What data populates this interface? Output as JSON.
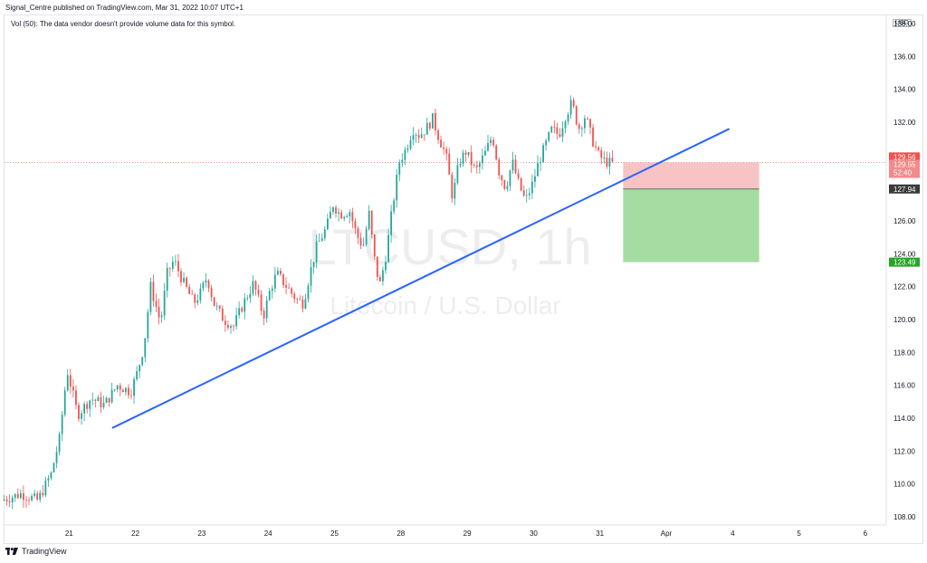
{
  "header": {
    "published": "Signal_Centre published on TradingView.com, Mar 31, 2022 10:07 UTC+1"
  },
  "volume_note": "Vol (50): The data vendor doesn't provide volume data for this symbol.",
  "currency_badge": "USD",
  "footer": {
    "brand": "TradingView"
  },
  "colors": {
    "up": "#26a69a",
    "down": "#ef5350",
    "trendline": "#2962ff",
    "stop_zone": "#f8c3c5",
    "target_zone": "#a5dca2",
    "price_label": "#ef5350",
    "entry_label": "#3a3a3a",
    "target_label": "#26a626"
  },
  "chart_data": {
    "type": "candlestick",
    "title": "LTCUSD, 1h",
    "watermark_symbol": "LTCUSD, 1h",
    "watermark_name": "Litecoin / U.S. Dollar",
    "timeframe": "1h",
    "ylim": [
      107.5,
      138.5
    ],
    "y_ticks": [
      108.0,
      110.0,
      112.0,
      114.0,
      116.0,
      118.0,
      120.0,
      122.0,
      124.0,
      126.0,
      128.0,
      130.0,
      132.0,
      134.0,
      136.0,
      138.0
    ],
    "x_ticks": [
      {
        "label": "21",
        "day": 1
      },
      {
        "label": "22",
        "day": 2
      },
      {
        "label": "23",
        "day": 3
      },
      {
        "label": "24",
        "day": 4
      },
      {
        "label": "25",
        "day": 5
      },
      {
        "label": "28",
        "day": 6
      },
      {
        "label": "29",
        "day": 7
      },
      {
        "label": "30",
        "day": 8
      },
      {
        "label": "31",
        "day": 9
      },
      {
        "label": "Apr",
        "day": 10
      },
      {
        "label": "4",
        "day": 11
      },
      {
        "label": "5",
        "day": 12
      },
      {
        "label": "6",
        "day": 13
      }
    ],
    "price_path": [
      [
        0.0,
        109.0
      ],
      [
        0.3,
        109.4
      ],
      [
        0.55,
        109.0
      ],
      [
        0.75,
        110.6
      ],
      [
        0.88,
        112.8
      ],
      [
        0.95,
        115.5
      ],
      [
        1.0,
        116.8
      ],
      [
        1.15,
        114.2
      ],
      [
        1.35,
        115.2
      ],
      [
        1.55,
        114.8
      ],
      [
        1.75,
        116.0
      ],
      [
        1.95,
        115.6
      ],
      [
        2.05,
        116.8
      ],
      [
        2.15,
        118.4
      ],
      [
        2.25,
        122.0
      ],
      [
        2.4,
        119.8
      ],
      [
        2.5,
        122.8
      ],
      [
        2.6,
        123.6
      ],
      [
        2.75,
        122.2
      ],
      [
        2.9,
        121.0
      ],
      [
        3.0,
        121.6
      ],
      [
        3.1,
        122.6
      ],
      [
        3.2,
        121.0
      ],
      [
        3.35,
        120.0
      ],
      [
        3.5,
        119.6
      ],
      [
        3.65,
        121.0
      ],
      [
        3.8,
        122.2
      ],
      [
        3.95,
        120.2
      ],
      [
        4.05,
        121.8
      ],
      [
        4.15,
        122.8
      ],
      [
        4.3,
        122.0
      ],
      [
        4.45,
        121.2
      ],
      [
        4.55,
        121.0
      ],
      [
        4.65,
        122.8
      ],
      [
        4.75,
        124.4
      ],
      [
        4.9,
        125.6
      ],
      [
        5.0,
        127.0
      ],
      [
        5.1,
        126.4
      ],
      [
        5.25,
        126.6
      ],
      [
        5.35,
        125.2
      ],
      [
        5.45,
        124.4
      ],
      [
        5.55,
        126.6
      ],
      [
        5.6,
        124.2
      ],
      [
        5.7,
        122.0
      ],
      [
        5.8,
        124.0
      ],
      [
        5.9,
        127.0
      ],
      [
        6.0,
        129.6
      ],
      [
        6.1,
        130.4
      ],
      [
        6.2,
        131.6
      ],
      [
        6.3,
        131.2
      ],
      [
        6.4,
        131.6
      ],
      [
        6.5,
        132.2
      ],
      [
        6.6,
        131.0
      ],
      [
        6.7,
        130.0
      ],
      [
        6.8,
        127.4
      ],
      [
        6.9,
        129.6
      ],
      [
        7.0,
        130.2
      ],
      [
        7.15,
        129.0
      ],
      [
        7.3,
        130.2
      ],
      [
        7.4,
        131.2
      ],
      [
        7.5,
        129.0
      ],
      [
        7.6,
        128.0
      ],
      [
        7.7,
        129.6
      ],
      [
        7.8,
        128.2
      ],
      [
        7.9,
        127.2
      ],
      [
        8.0,
        128.2
      ],
      [
        8.1,
        129.6
      ],
      [
        8.2,
        130.6
      ],
      [
        8.3,
        131.6
      ],
      [
        8.4,
        131.2
      ],
      [
        8.5,
        132.4
      ],
      [
        8.6,
        133.2
      ],
      [
        8.7,
        131.6
      ],
      [
        8.8,
        132.4
      ],
      [
        8.9,
        131.0
      ],
      [
        9.0,
        130.0
      ],
      [
        9.1,
        129.6
      ],
      [
        9.2,
        129.5
      ]
    ],
    "current_price": {
      "value": 129.56,
      "label": "129.56"
    },
    "bid_price": {
      "value": 129.55,
      "label": "129.55"
    },
    "countdown": "52:40",
    "trade_setup": {
      "entry": {
        "value": 127.94,
        "label": "127.94"
      },
      "stop": {
        "value": 129.56
      },
      "target": {
        "value": 123.49,
        "label": "123.49"
      },
      "start_day": 9.35,
      "end_day": 11.4
    },
    "trendline": {
      "start": {
        "day": 1.65,
        "price": 113.4
      },
      "end": {
        "day": 10.95,
        "price": 131.6
      }
    },
    "grid": false
  }
}
